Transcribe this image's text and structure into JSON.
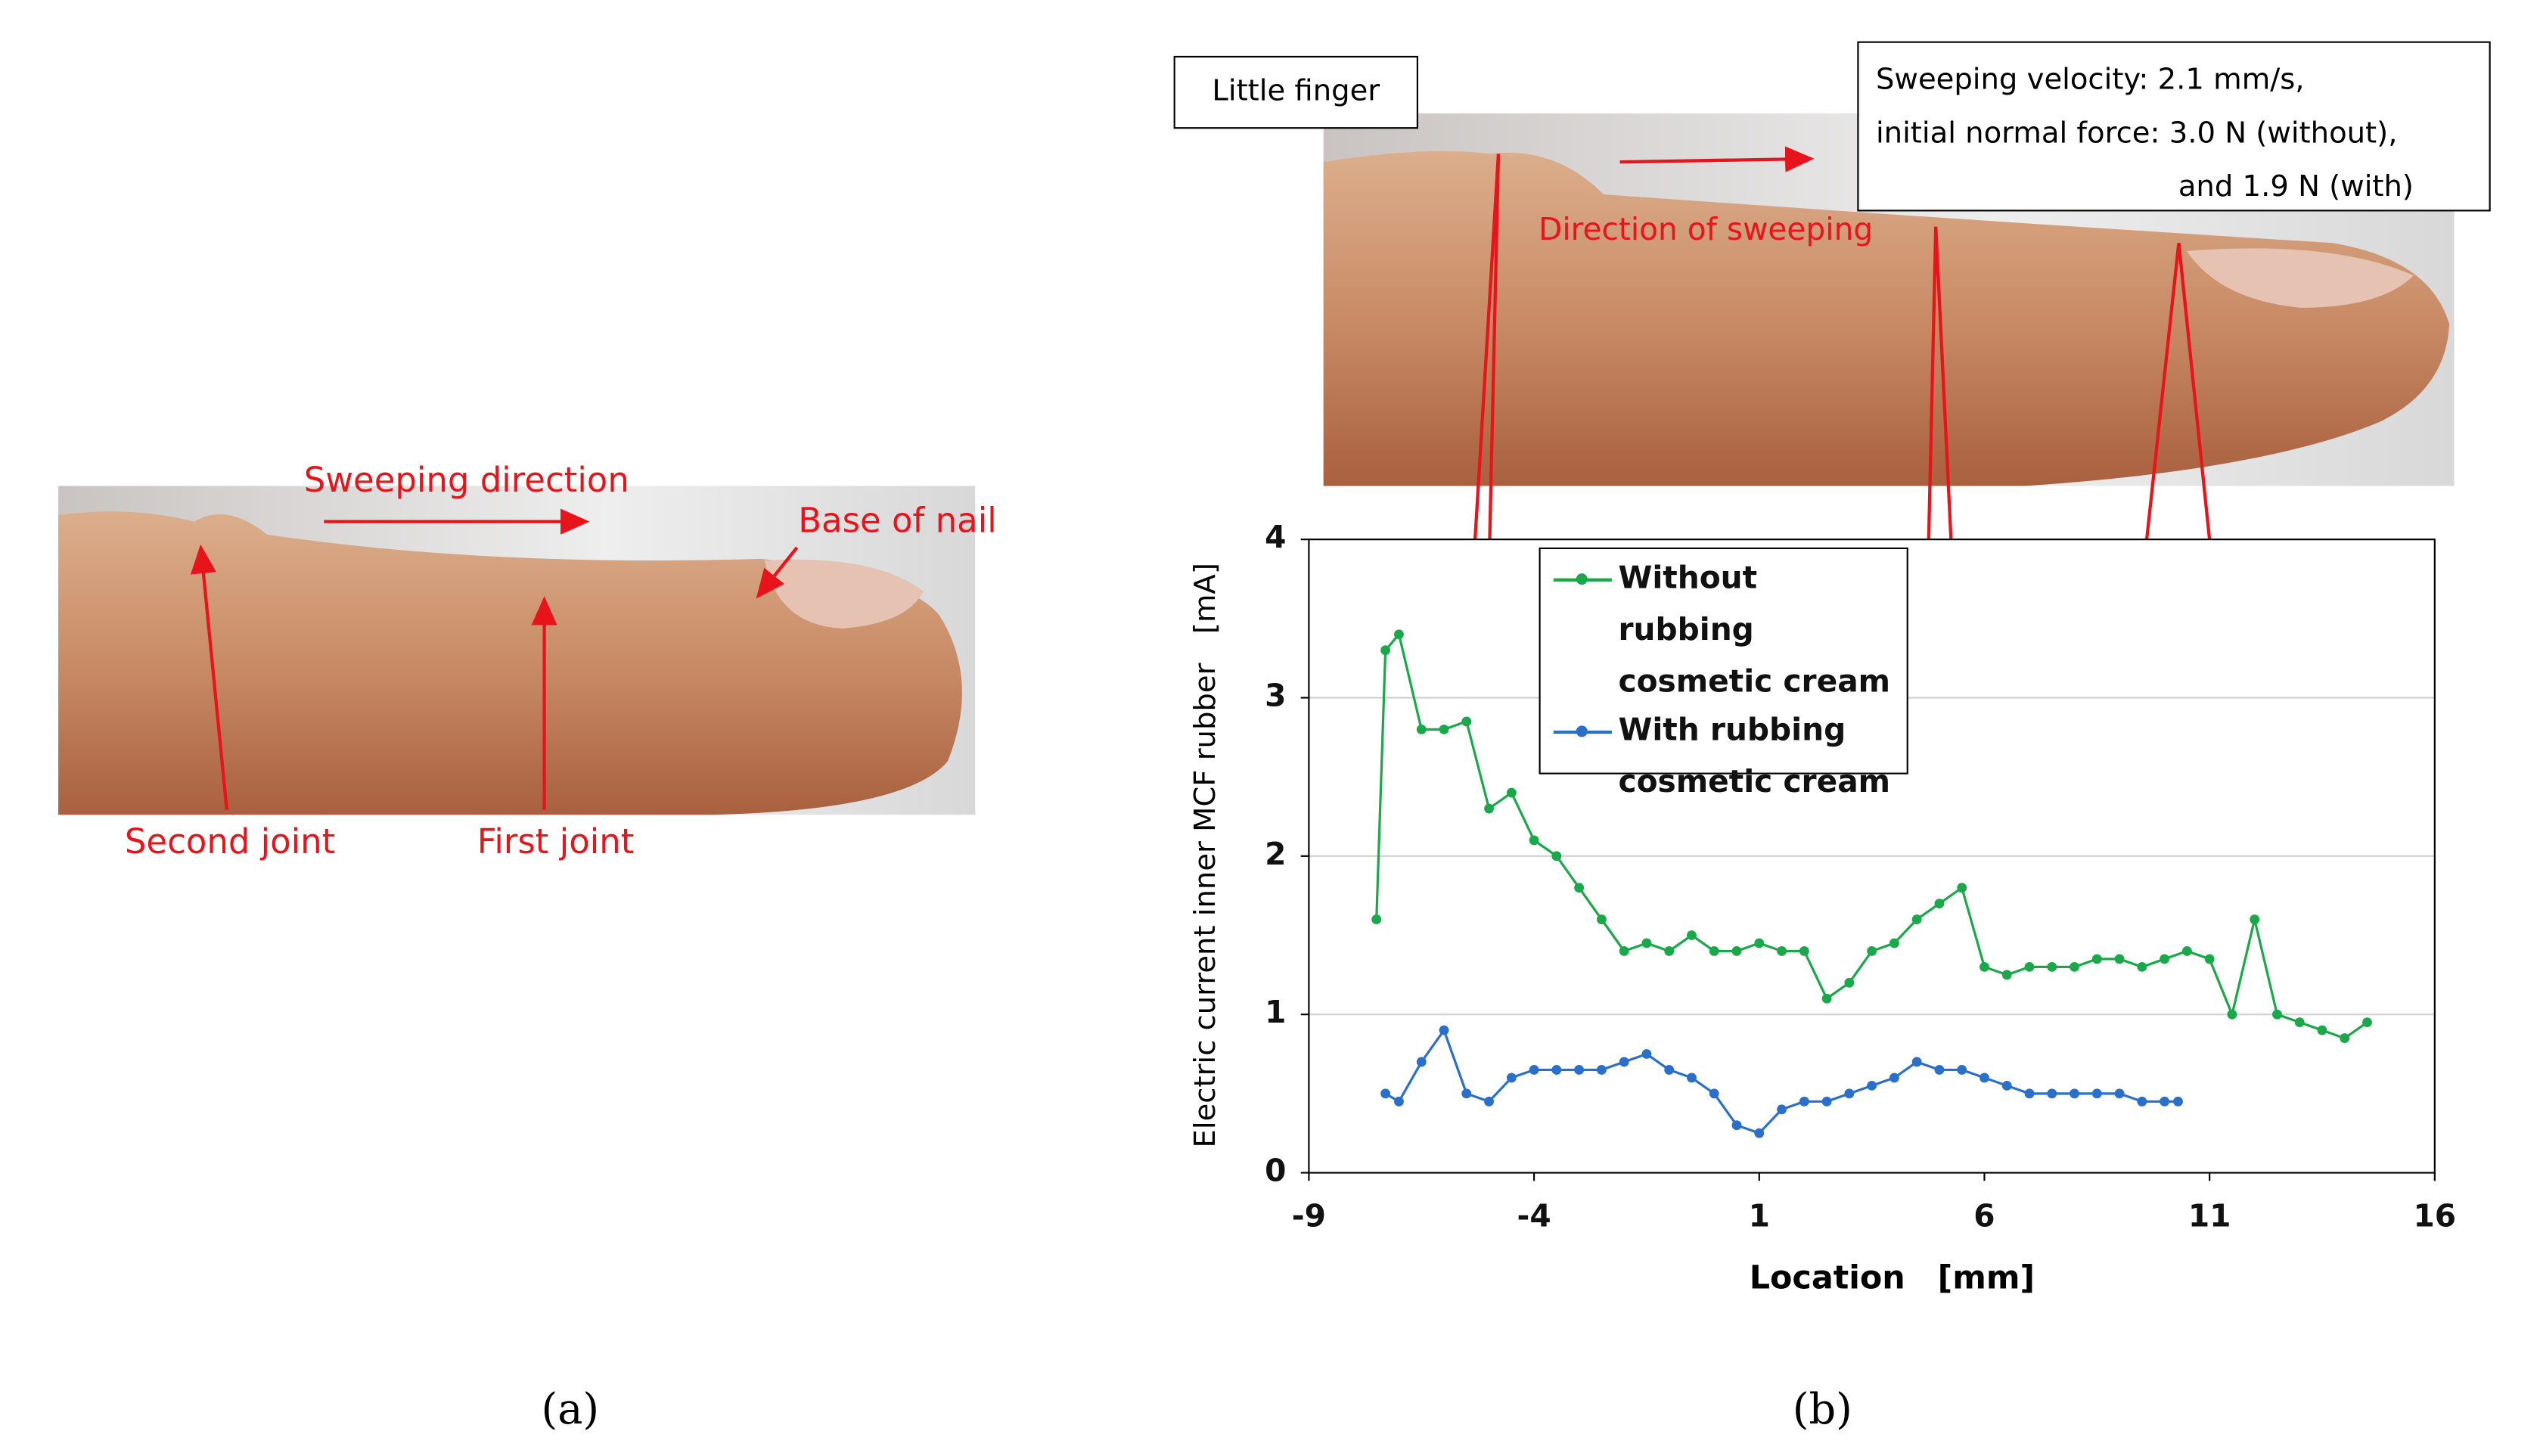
{
  "panel_a": {
    "label": "(a)",
    "sweep_label": "Sweeping direction",
    "nail_label": "Base of nail",
    "second_joint_label": "Second joint",
    "first_joint_label": "First joint"
  },
  "panel_b": {
    "label": "(b)",
    "photo_label": "Little finger",
    "direction_label": "Direction of sweeping",
    "conditions": [
      "Sweeping velocity: 2.1 mm/s,",
      "initial normal force: 3.0 N (without),",
      "and 1.9 N (with)"
    ]
  },
  "chart_data": {
    "type": "line",
    "xlabel": "Location　[mm]",
    "ylabel": "Electric current inner MCF rubber　[mA]",
    "xlim": [
      -9,
      16
    ],
    "xticks": [
      -9,
      -4,
      1,
      6,
      11,
      16
    ],
    "ylim": [
      0,
      4
    ],
    "yticks": [
      0,
      1,
      2,
      3,
      4
    ],
    "grid": true,
    "legend": "upper center",
    "series": [
      {
        "name": "Without rubbing cosmetic cream",
        "color": "#1aa84a",
        "x": [
          -7.5,
          -7.3,
          -7,
          -6.5,
          -6,
          -5.5,
          -5,
          -4.5,
          -4,
          -3.5,
          -3,
          -2.5,
          -2,
          -1.5,
          -1,
          -0.5,
          0,
          0.5,
          1,
          1.5,
          2,
          2.5,
          3,
          3.5,
          4,
          4.5,
          5,
          5.5,
          6,
          6.5,
          7,
          7.5,
          8,
          8.5,
          9,
          9.5,
          10,
          10.5,
          11,
          11.5,
          12,
          12.5,
          13,
          13.5,
          14,
          14.5
        ],
        "values": [
          1.6,
          3.3,
          3.4,
          2.8,
          2.8,
          2.85,
          2.3,
          2.4,
          2.1,
          2.0,
          1.8,
          1.6,
          1.4,
          1.45,
          1.4,
          1.5,
          1.4,
          1.4,
          1.45,
          1.4,
          1.4,
          1.1,
          1.2,
          1.4,
          1.45,
          1.6,
          1.7,
          1.8,
          1.3,
          1.25,
          1.3,
          1.3,
          1.3,
          1.35,
          1.35,
          1.3,
          1.35,
          1.4,
          1.35,
          1.0,
          1.6,
          1.0,
          0.95,
          0.9,
          0.85,
          0.95
        ]
      },
      {
        "name": "With rubbing cosmetic cream",
        "color": "#2a6fc9",
        "x": [
          -7.3,
          -7,
          -6.5,
          -6,
          -5.5,
          -5,
          -4.5,
          -4,
          -3.5,
          -3,
          -2.5,
          -2,
          -1.5,
          -1,
          -0.5,
          0,
          0.5,
          1,
          1.5,
          2,
          2.5,
          3,
          3.5,
          4,
          4.5,
          5,
          5.5,
          6,
          6.5,
          7,
          7.5,
          8,
          8.5,
          9,
          9.5,
          10,
          10.3
        ],
        "values": [
          0.5,
          0.45,
          0.7,
          0.9,
          0.5,
          0.45,
          0.6,
          0.65,
          0.65,
          0.65,
          0.65,
          0.7,
          0.75,
          0.65,
          0.6,
          0.5,
          0.3,
          0.25,
          0.4,
          0.45,
          0.45,
          0.5,
          0.55,
          0.6,
          0.7,
          0.65,
          0.65,
          0.6,
          0.55,
          0.5,
          0.5,
          0.5,
          0.5,
          0.5,
          0.45,
          0.45,
          0.45
        ]
      }
    ]
  }
}
